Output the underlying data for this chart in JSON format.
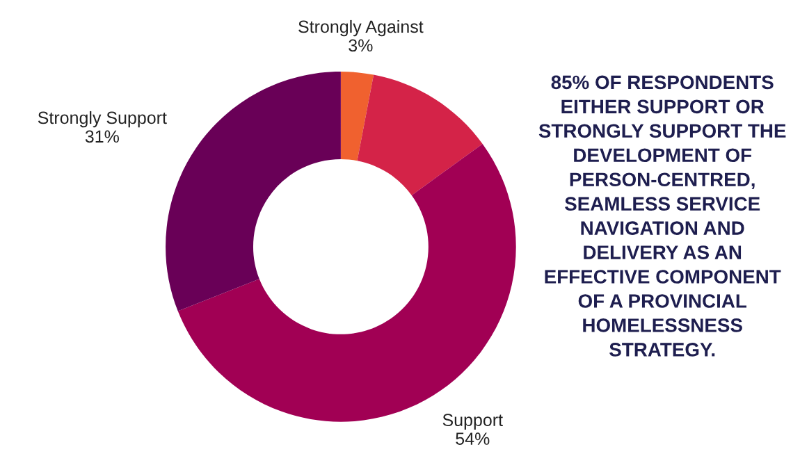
{
  "chart_data": {
    "type": "donut",
    "categories": [
      "Strongly Against",
      null,
      "Support",
      "Strongly Support"
    ],
    "values": [
      3,
      12,
      54,
      31
    ],
    "colors": [
      "#f0612f",
      "#d42348",
      "#a10054",
      "#690057"
    ],
    "value_labels": [
      "3%",
      null,
      "54%",
      "31%"
    ],
    "annotations": [
      "85% OF RESPONDENTS\nEITHER SUPPORT OR\nSTRONGLY SUPPORT THE\nDEVELOPMENT OF\nPERSON-CENTRED,\nSEAMLESS SERVICE\nNAVIGATION AND\nDELIVERY AS AN\nEFFECTIVE COMPONENT\nOF A PROVINCIAL\nHOMELESSNESS\nSTRATEGY."
    ],
    "legend": false
  }
}
